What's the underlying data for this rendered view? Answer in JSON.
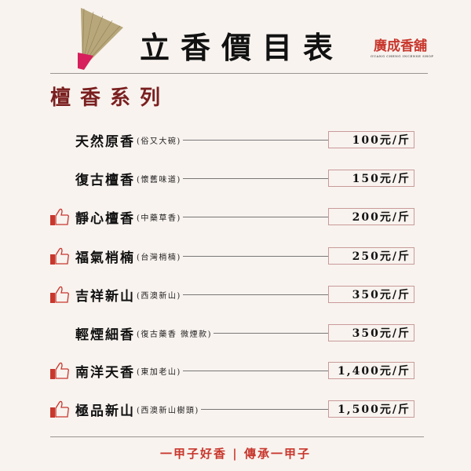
{
  "header": {
    "title": "立香價目表",
    "logo_text": "廣成香舖",
    "logo_sub": "GUANG CHENG  INCENSE SHOP"
  },
  "section_title": "檀香系列",
  "items": [
    {
      "name": "天然原香",
      "note": "(俗又大碗)",
      "price": "100元/斤",
      "recommended": false
    },
    {
      "name": "復古檀香",
      "note": "(懷舊味道)",
      "price": "150元/斤",
      "recommended": false
    },
    {
      "name": "靜心檀香",
      "note": "(中藥草香)",
      "price": "200元/斤",
      "recommended": true
    },
    {
      "name": "福氣梢楠",
      "note": "(台灣梢楠)",
      "price": "250元/斤",
      "recommended": true
    },
    {
      "name": "吉祥新山",
      "note": "(西澳新山)",
      "price": "350元/斤",
      "recommended": true
    },
    {
      "name": "輕煙細香",
      "note": "(復古藥香 微煙款)",
      "price": "350元/斤",
      "recommended": false
    },
    {
      "name": "南洋天香",
      "note": "(東加老山)",
      "price": "1,400元/斤",
      "recommended": true
    },
    {
      "name": "極品新山",
      "note": "(西澳新山樹頭)",
      "price": "1,500元/斤",
      "recommended": true
    }
  ],
  "footer": "一甲子好香 | 傳承一甲子",
  "colors": {
    "accent": "#c8372d",
    "section": "#7a1f1f",
    "background": "#f8f3ef"
  }
}
